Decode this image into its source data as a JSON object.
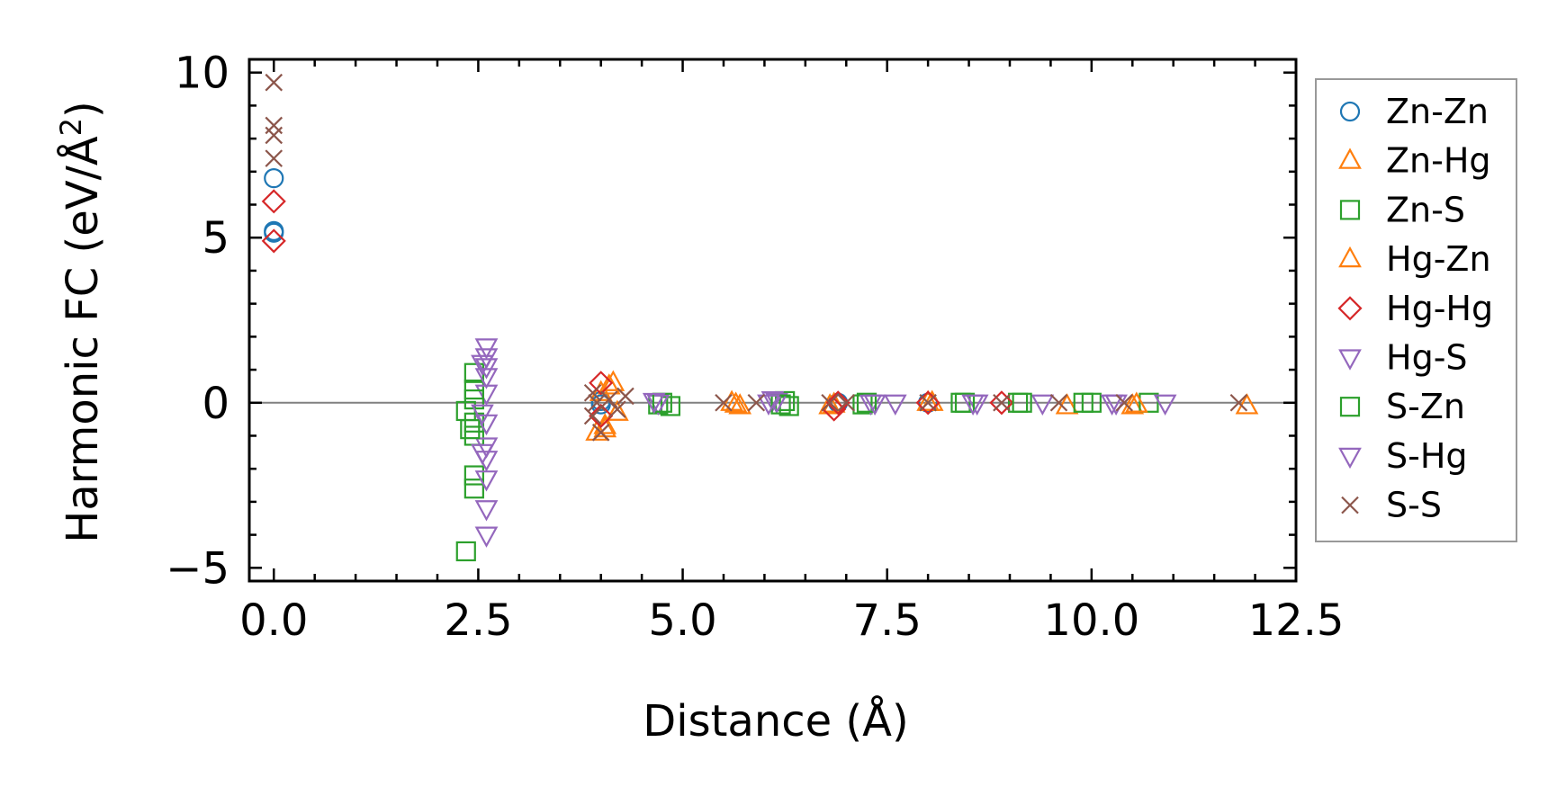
{
  "chart_data": {
    "type": "scatter",
    "xlabel": "Distance (Å)",
    "ylabel_main": "Harmonic FC (eV/Å",
    "ylabel_sup": "2",
    "ylabel_close": ")",
    "xlim": [
      -0.3,
      12.5
    ],
    "ylim": [
      -5.4,
      10.4
    ],
    "x_ticks": [
      0.0,
      2.5,
      5.0,
      7.5,
      10.0,
      12.5
    ],
    "x_tick_labels": [
      "0.0",
      "2.5",
      "5.0",
      "7.5",
      "10.0",
      "12.5"
    ],
    "y_ticks": [
      -5,
      0,
      5,
      10
    ],
    "y_tick_labels": [
      "−5",
      "0",
      "5",
      "10"
    ],
    "grid": false,
    "zero_line": true,
    "legend_position": "right, outside plot",
    "series": [
      {
        "name": "Zn-Zn",
        "marker": "circle",
        "color": "#1f77b4",
        "points": [
          [
            0,
            6.8
          ],
          [
            0,
            5.2
          ],
          [
            0,
            5.15
          ],
          [
            4.0,
            0.05
          ],
          [
            4.0,
            -0.05
          ],
          [
            6.9,
            0.0
          ],
          [
            8.0,
            0.0
          ]
        ]
      },
      {
        "name": "Zn-Hg",
        "marker": "triangle-up",
        "color": "#ff7f0e",
        "points": [
          [
            3.95,
            -0.9
          ],
          [
            4.05,
            -0.7
          ],
          [
            4.1,
            0.5
          ],
          [
            4.0,
            0.3
          ],
          [
            4.2,
            -0.3
          ],
          [
            5.6,
            0.0
          ],
          [
            5.7,
            -0.1
          ],
          [
            6.8,
            -0.1
          ],
          [
            8.0,
            0.0
          ],
          [
            9.7,
            -0.1
          ],
          [
            10.5,
            -0.1
          ],
          [
            11.9,
            -0.1
          ]
        ]
      },
      {
        "name": "Zn-S",
        "marker": "square",
        "color": "#2ca02c",
        "points": [
          [
            2.35,
            -4.5
          ],
          [
            2.45,
            -2.6
          ],
          [
            2.45,
            -2.2
          ],
          [
            2.45,
            -1.0
          ],
          [
            2.45,
            -0.6
          ],
          [
            2.35,
            -0.25
          ],
          [
            2.45,
            0.4
          ],
          [
            2.45,
            0.9
          ],
          [
            4.7,
            -0.05
          ],
          [
            4.85,
            -0.1
          ],
          [
            6.3,
            -0.1
          ],
          [
            6.25,
            0.05
          ],
          [
            7.2,
            -0.05
          ],
          [
            8.4,
            0.0
          ],
          [
            9.1,
            0.0
          ],
          [
            9.9,
            0.0
          ],
          [
            10.7,
            0.0
          ]
        ]
      },
      {
        "name": "Hg-Zn",
        "marker": "triangle-up",
        "color": "#ff7f0e",
        "points": [
          [
            4.05,
            -0.8
          ],
          [
            4.15,
            0.6
          ],
          [
            5.65,
            -0.05
          ],
          [
            6.85,
            -0.05
          ],
          [
            8.05,
            0.0
          ],
          [
            10.55,
            -0.05
          ]
        ]
      },
      {
        "name": "Hg-Hg",
        "marker": "diamond",
        "color": "#d62728",
        "points": [
          [
            0,
            6.1
          ],
          [
            0,
            4.9
          ],
          [
            4.0,
            0.6
          ],
          [
            4.0,
            -0.4
          ],
          [
            6.9,
            0.0
          ],
          [
            6.85,
            -0.2
          ],
          [
            8.0,
            0.0
          ],
          [
            8.9,
            0.0
          ]
        ]
      },
      {
        "name": "Hg-S",
        "marker": "triangle-down",
        "color": "#9467bd",
        "points": [
          [
            2.6,
            -4.0
          ],
          [
            2.6,
            -3.2
          ],
          [
            2.6,
            -2.3
          ],
          [
            2.6,
            -1.7
          ],
          [
            2.6,
            -1.3
          ],
          [
            2.6,
            -0.6
          ],
          [
            2.6,
            0.3
          ],
          [
            2.6,
            0.8
          ],
          [
            2.6,
            1.1
          ],
          [
            2.6,
            1.4
          ],
          [
            2.6,
            1.7
          ],
          [
            4.7,
            0.0
          ],
          [
            6.1,
            0.1
          ],
          [
            6.15,
            0.05
          ],
          [
            7.3,
            0.0
          ],
          [
            7.6,
            0.0
          ],
          [
            8.6,
            0.0
          ],
          [
            9.4,
            0.0
          ],
          [
            10.3,
            0.0
          ],
          [
            10.9,
            0.0
          ]
        ]
      },
      {
        "name": "S-Zn",
        "marker": "square",
        "color": "#2ca02c",
        "points": [
          [
            2.4,
            -0.8
          ],
          [
            2.45,
            0.1
          ],
          [
            4.75,
            0.0
          ],
          [
            6.2,
            -0.05
          ],
          [
            7.25,
            0.0
          ],
          [
            8.45,
            0.0
          ],
          [
            9.15,
            0.0
          ],
          [
            10.0,
            0.0
          ]
        ]
      },
      {
        "name": "S-Hg",
        "marker": "triangle-down",
        "color": "#9467bd",
        "points": [
          [
            2.55,
            -1.5
          ],
          [
            2.55,
            -0.3
          ],
          [
            2.55,
            1.2
          ],
          [
            4.65,
            0.05
          ],
          [
            6.05,
            0.0
          ],
          [
            7.35,
            0.0
          ],
          [
            8.55,
            0.0
          ],
          [
            10.25,
            0.0
          ]
        ]
      },
      {
        "name": "S-S",
        "marker": "x",
        "color": "#8c564b",
        "points": [
          [
            0,
            9.7
          ],
          [
            0,
            8.4
          ],
          [
            0,
            8.1
          ],
          [
            0,
            7.4
          ],
          [
            3.9,
            0.3
          ],
          [
            3.9,
            -0.4
          ],
          [
            4.0,
            -0.9
          ],
          [
            4.1,
            0.1
          ],
          [
            4.2,
            -0.2
          ],
          [
            4.3,
            0.2
          ],
          [
            3.95,
            0.0
          ],
          [
            5.5,
            0.0
          ],
          [
            5.9,
            0.0
          ],
          [
            6.8,
            0.0
          ],
          [
            7.0,
            0.0
          ],
          [
            8.0,
            0.0
          ],
          [
            8.9,
            0.0
          ],
          [
            9.6,
            0.0
          ],
          [
            10.4,
            0.0
          ],
          [
            11.8,
            0.0
          ]
        ]
      }
    ]
  }
}
